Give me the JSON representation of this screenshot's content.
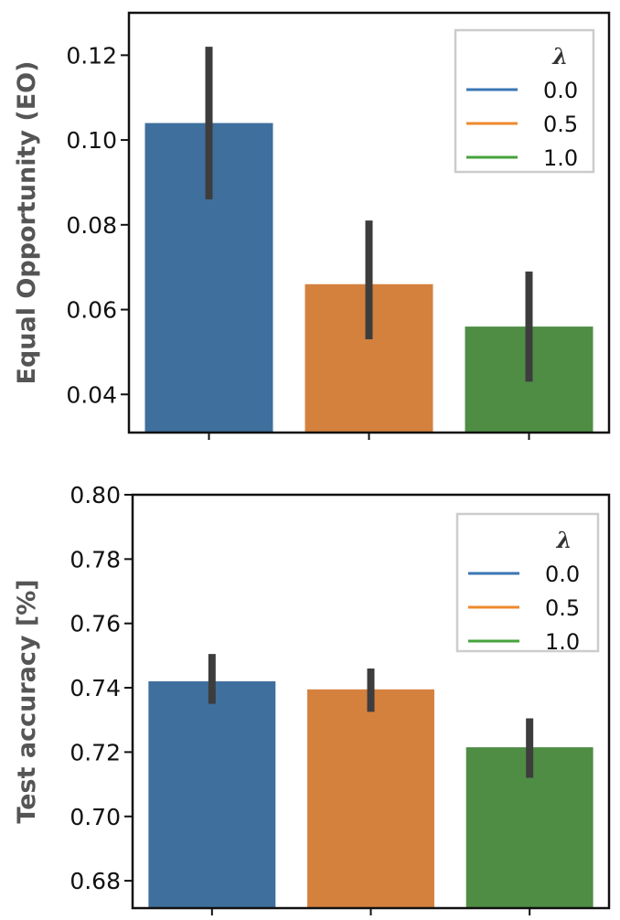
{
  "chart_data": [
    {
      "type": "bar",
      "categories": [
        "0.0",
        "0.5",
        "1.0"
      ],
      "values": [
        0.104,
        0.066,
        0.056
      ],
      "error_low": [
        0.086,
        0.053,
        0.043
      ],
      "error_high": [
        0.122,
        0.081,
        0.069
      ],
      "colors": [
        "#3f6f9d",
        "#d5813e",
        "#4f8d45"
      ],
      "ylabel": "Equal Opportunity (EO)",
      "xlabel": "",
      "ylim": [
        0.031,
        0.13
      ],
      "yticks": [
        0.04,
        0.06,
        0.08,
        0.1,
        0.12
      ],
      "ytick_labels": [
        "0.04",
        "0.06",
        "0.08",
        "0.10",
        "0.12"
      ],
      "legend": {
        "title": "λ",
        "placement": "top-right",
        "entries": [
          "0.0",
          "0.5",
          "1.0"
        ],
        "colors": [
          "#3a76b4",
          "#ef8a2d",
          "#45a33c"
        ]
      }
    },
    {
      "type": "bar",
      "categories": [
        "0.0",
        "0.5",
        "1.0"
      ],
      "values": [
        0.742,
        0.7395,
        0.7215
      ],
      "error_low": [
        0.735,
        0.7325,
        0.712
      ],
      "error_high": [
        0.7505,
        0.746,
        0.7305
      ],
      "colors": [
        "#3f6f9d",
        "#d5813e",
        "#4f8d45"
      ],
      "ylabel": "Test accuracy [%]",
      "xlabel": "",
      "ylim": [
        0.6715,
        0.8
      ],
      "yticks": [
        0.68,
        0.7,
        0.72,
        0.74,
        0.76,
        0.78,
        0.8
      ],
      "ytick_labels": [
        "0.68",
        "0.70",
        "0.72",
        "0.74",
        "0.76",
        "0.78",
        "0.80"
      ],
      "legend": {
        "title": "λ",
        "placement": "top-right",
        "entries": [
          "0.0",
          "0.5",
          "1.0"
        ],
        "colors": [
          "#3a76b4",
          "#ef8a2d",
          "#45a33c"
        ]
      }
    }
  ]
}
